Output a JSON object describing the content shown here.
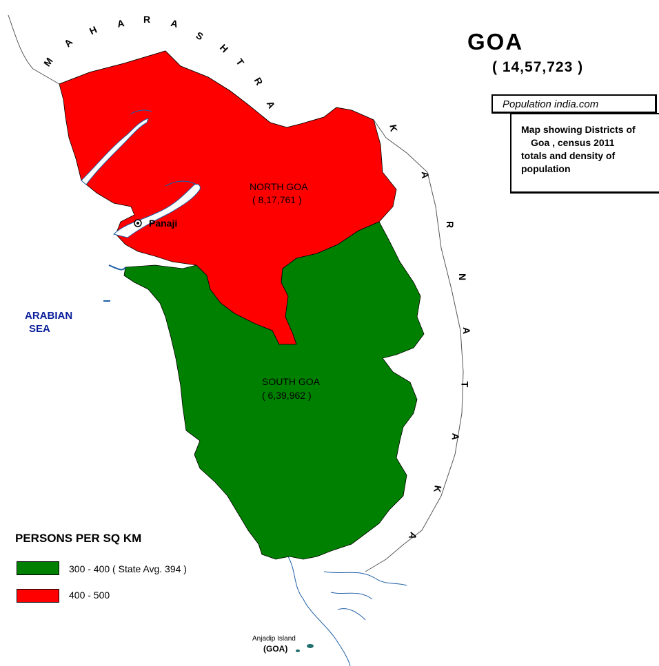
{
  "title": "GOA",
  "total_population": "( 14,57,723 )",
  "source": "Population india.com",
  "description_lines": [
    "Map showing Districts of",
    "Goa , census 2011",
    "totals and density of",
    "population"
  ],
  "districts": [
    {
      "name": "NORTH  GOA",
      "population": "( 8,17,761 )",
      "color": "#ff0000"
    },
    {
      "name": "SOUTH  GOA",
      "population": "( 6,39,962 )",
      "color": "#008000"
    }
  ],
  "capital": "Panaji",
  "sea_label": [
    "ARABIAN",
    "SEA"
  ],
  "neighbors": {
    "north": [
      "M",
      "A",
      "H",
      "A",
      "R",
      "A",
      "S",
      "H",
      "T",
      "R",
      "A"
    ],
    "east": [
      "K",
      "A",
      "R",
      "N",
      "A",
      "T",
      "A",
      "K",
      "A"
    ]
  },
  "island": {
    "name": "Anjadip Island",
    "state": "(GOA)"
  },
  "legend": {
    "title": "PERSONS PER SQ KM",
    "items": [
      {
        "label": "300 - 400 ( State Avg. 394 )",
        "color": "#008000"
      },
      {
        "label": "400 - 500",
        "color": "#ff0000"
      }
    ]
  },
  "colors": {
    "water": "#1f5fa6",
    "border": "#000000"
  }
}
